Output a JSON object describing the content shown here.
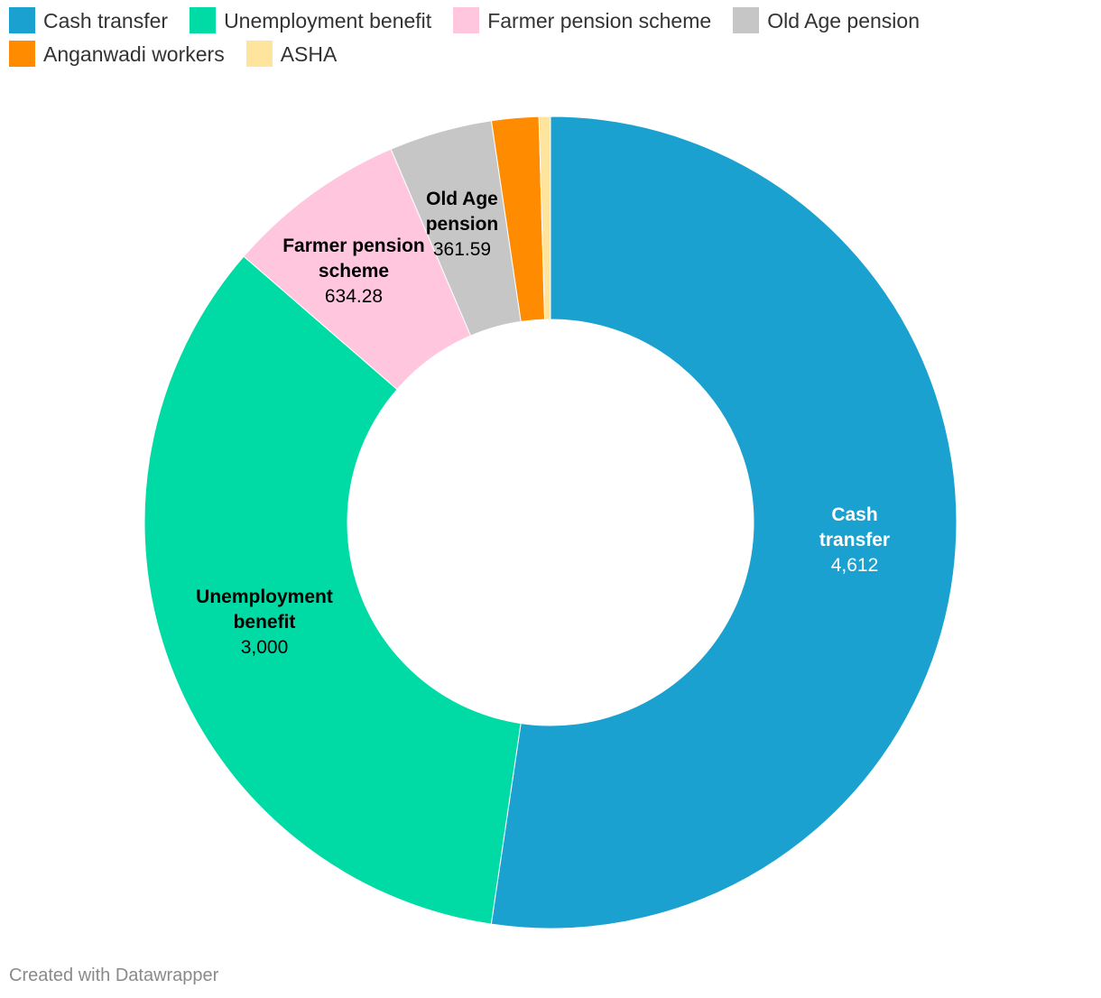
{
  "chart_data": {
    "type": "pie",
    "variant": "donut",
    "slices": [
      {
        "label": "Cash transfer",
        "value": 4612,
        "display": "4,612",
        "color": "#1aa1cf",
        "label_color": "#ffffff",
        "show_label": true
      },
      {
        "label": "Unemployment benefit",
        "value": 3000,
        "display": "3,000",
        "color": "#00dba5",
        "label_color": "#000000",
        "show_label": true
      },
      {
        "label": "Farmer pension scheme",
        "value": 634.28,
        "display": "634.28",
        "color": "#ffc6dd",
        "label_color": "#000000",
        "show_label": true
      },
      {
        "label": "Old Age pension",
        "value": 361.59,
        "display": "361.59",
        "color": "#c6c6c6",
        "label_color": "#000000",
        "show_label": true
      },
      {
        "label": "Anganwadi workers",
        "value": 165,
        "display": "",
        "color": "#ff8c00",
        "label_color": "#000000",
        "show_label": false
      },
      {
        "label": "ASHA",
        "value": 40,
        "display": "",
        "color": "#ffe49e",
        "label_color": "#000000",
        "show_label": false
      }
    ],
    "legend_position": "top"
  },
  "footer": {
    "credit": "Created with Datawrapper"
  }
}
